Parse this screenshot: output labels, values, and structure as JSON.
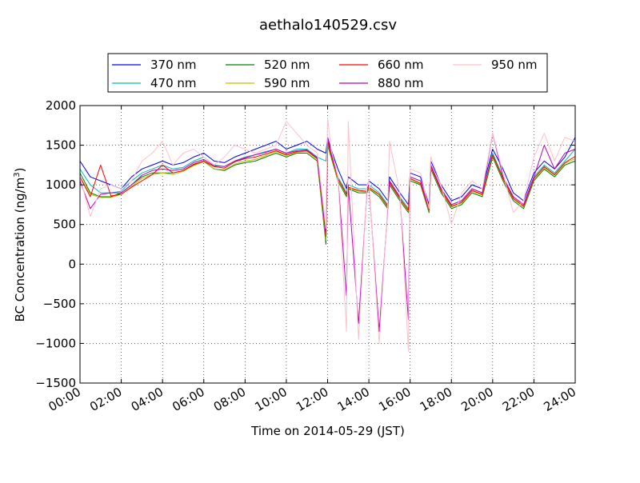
{
  "chart_data": {
    "type": "line",
    "title": "aethalo140529.csv",
    "xlabel": "Time on 2014-05-29 (JST)",
    "ylabel_main": "BC Concentration (ng/m",
    "ylabel_sup": "3",
    "ylabel_end": ")",
    "xlim": [
      "00:00",
      "24:00"
    ],
    "ylim": [
      -1500,
      2000
    ],
    "x_ticks": [
      "00:00",
      "02:00",
      "04:00",
      "06:00",
      "08:00",
      "10:00",
      "12:00",
      "14:00",
      "16:00",
      "18:00",
      "20:00",
      "22:00",
      "24:00"
    ],
    "y_ticks": [
      "2000",
      "1500",
      "1000",
      "500",
      "0",
      "−500",
      "−1000",
      "−1500"
    ],
    "y_tick_values": [
      2000,
      1500,
      1000,
      500,
      0,
      -500,
      -1000,
      -1500
    ],
    "grid": true,
    "legend_position": "top",
    "x": [
      "00:00",
      "00:30",
      "01:00",
      "01:30",
      "02:00",
      "02:30",
      "03:00",
      "03:30",
      "04:00",
      "04:30",
      "05:00",
      "05:30",
      "06:00",
      "06:30",
      "07:00",
      "07:30",
      "08:00",
      "08:30",
      "09:00",
      "09:30",
      "10:00",
      "10:30",
      "11:00",
      "11:30",
      "11:55",
      "12:00",
      "12:10",
      "12:30",
      "12:55",
      "13:00",
      "13:30",
      "13:55",
      "14:00",
      "14:30",
      "14:55",
      "15:00",
      "15:30",
      "15:55",
      "16:00",
      "16:30",
      "16:55",
      "17:00",
      "17:30",
      "18:00",
      "18:30",
      "19:00",
      "19:30",
      "20:00",
      "20:30",
      "21:00",
      "21:30",
      "22:00",
      "22:30",
      "23:00",
      "23:30",
      "24:00"
    ],
    "series": [
      {
        "name": "370 nm",
        "color": "#0000ff",
        "values": [
          1300,
          1100,
          1050,
          1000,
          950,
          1100,
          1200,
          1250,
          1300,
          1250,
          1280,
          1350,
          1400,
          1300,
          1280,
          1350,
          1400,
          1450,
          1500,
          1550,
          1450,
          1500,
          1550,
          1450,
          1400,
          1600,
          1450,
          1200,
          950,
          1100,
          1000,
          1000,
          1050,
          950,
          800,
          1100,
          900,
          750,
          1150,
          1100,
          750,
          1300,
          1000,
          800,
          850,
          1000,
          950,
          1450,
          1200,
          900,
          800,
          1150,
          1300,
          1200,
          1350,
          1600
        ]
      },
      {
        "name": "470 nm",
        "color": "#00bfbf",
        "values": [
          1200,
          1000,
          900,
          900,
          920,
          1050,
          1150,
          1200,
          1250,
          1200,
          1220,
          1300,
          1350,
          1250,
          1230,
          1300,
          1350,
          1380,
          1420,
          1450,
          1400,
          1450,
          1450,
          1350,
          1300,
          1550,
          1400,
          1100,
          900,
          1000,
          950,
          950,
          1000,
          900,
          750,
          1050,
          850,
          700,
          1100,
          1050,
          700,
          1250,
          950,
          750,
          800,
          950,
          900,
          1400,
          1100,
          850,
          750,
          1100,
          1250,
          1150,
          1300,
          1450
        ]
      },
      {
        "name": "520 nm",
        "color": "#008000",
        "values": [
          1150,
          900,
          850,
          850,
          900,
          1000,
          1100,
          1150,
          1150,
          1150,
          1180,
          1250,
          1300,
          1200,
          1180,
          1250,
          1280,
          1300,
          1350,
          1400,
          1350,
          1400,
          1400,
          1300,
          250,
          1500,
          1350,
          1050,
          850,
          950,
          900,
          900,
          950,
          850,
          700,
          1000,
          800,
          650,
          1050,
          1000,
          650,
          1200,
          900,
          700,
          750,
          900,
          850,
          1350,
          1050,
          800,
          700,
          1050,
          1200,
          1100,
          1250,
          1300
        ]
      },
      {
        "name": "590 nm",
        "color": "#bfbf00",
        "values": [
          1100,
          880,
          840,
          840,
          880,
          980,
          1080,
          1130,
          1150,
          1130,
          1170,
          1240,
          1290,
          1200,
          1190,
          1260,
          1300,
          1320,
          1370,
          1420,
          1370,
          1410,
          1420,
          1320,
          300,
          1520,
          1370,
          1060,
          870,
          960,
          920,
          910,
          960,
          870,
          720,
          1020,
          820,
          670,
          1070,
          1010,
          670,
          1220,
          920,
          720,
          770,
          920,
          870,
          1370,
          1070,
          820,
          720,
          1070,
          1220,
          1120,
          1270,
          1330
        ]
      },
      {
        "name": "660 nm",
        "color": "#ff0000",
        "values": [
          1100,
          850,
          1250,
          860,
          880,
          970,
          1050,
          1130,
          1250,
          1150,
          1180,
          1260,
          1300,
          1230,
          1210,
          1290,
          1330,
          1350,
          1390,
          1430,
          1380,
          1420,
          1430,
          1330,
          350,
          1550,
          1380,
          1080,
          880,
          970,
          930,
          920,
          970,
          880,
          730,
          1030,
          830,
          680,
          1080,
          1020,
          680,
          1230,
          930,
          730,
          780,
          930,
          880,
          1380,
          1080,
          830,
          730,
          1080,
          1230,
          1130,
          1280,
          1360
        ]
      },
      {
        "name": "880 nm",
        "color": "#bf00bf",
        "values": [
          1050,
          700,
          880,
          900,
          900,
          1000,
          1120,
          1180,
          1200,
          1180,
          1200,
          1280,
          1320,
          1240,
          1230,
          1300,
          1340,
          1380,
          1410,
          1450,
          1400,
          1430,
          1440,
          1340,
          380,
          1600,
          1400,
          1100,
          -400,
          1000,
          -750,
          950,
          1000,
          -850,
          700,
          1050,
          850,
          -700,
          1100,
          1050,
          700,
          1250,
          950,
          750,
          800,
          950,
          900,
          1650,
          1100,
          850,
          750,
          1100,
          1500,
          1200,
          1400,
          1450
        ]
      },
      {
        "name": "950 nm",
        "color": "#ffc0cb",
        "values": [
          1100,
          600,
          950,
          1000,
          950,
          1050,
          1300,
          1400,
          1550,
          1250,
          1400,
          1450,
          1350,
          1250,
          1350,
          1500,
          1450,
          1400,
          1450,
          1500,
          1800,
          1650,
          1500,
          1400,
          450,
          1850,
          1450,
          1100,
          -850,
          1800,
          -950,
          1000,
          1050,
          -1000,
          750,
          1550,
          900,
          -1100,
          1200,
          1150,
          700,
          1350,
          1000,
          500,
          900,
          1050,
          950,
          1650,
          1150,
          650,
          800,
          1350,
          1650,
          1300,
          1600,
          1550
        ]
      }
    ]
  }
}
